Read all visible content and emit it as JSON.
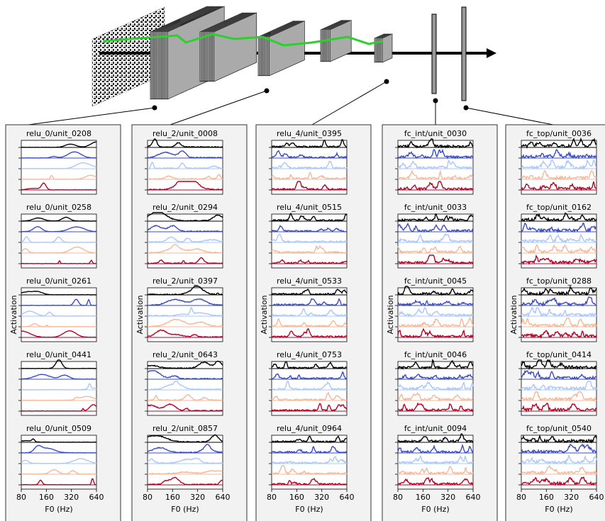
{
  "panels": {
    "columns": [
      {
        "units": [
          "relu_0/unit_0208",
          "relu_0/unit_0258",
          "relu_0/unit_0261",
          "relu_0/unit_0441",
          "relu_0/unit_0509"
        ]
      },
      {
        "units": [
          "relu_2/unit_0008",
          "relu_2/unit_0294",
          "relu_2/unit_0397",
          "relu_2/unit_0643",
          "relu_2/unit_0857"
        ]
      },
      {
        "units": [
          "relu_4/unit_0395",
          "relu_4/unit_0515",
          "relu_4/unit_0533",
          "relu_4/unit_0753",
          "relu_4/unit_0964"
        ]
      },
      {
        "units": [
          "fc_int/unit_0030",
          "fc_int/unit_0033",
          "fc_int/unit_0045",
          "fc_int/unit_0046",
          "fc_int/unit_0094"
        ]
      },
      {
        "units": [
          "fc_top/unit_0036",
          "fc_top/unit_0162",
          "fc_top/unit_0288",
          "fc_top/unit_0414",
          "fc_top/unit_0540"
        ]
      }
    ],
    "xticks": [
      80,
      160,
      320,
      640
    ],
    "xlabel": "F0 (Hz)",
    "ylabel": "Activation"
  }
}
